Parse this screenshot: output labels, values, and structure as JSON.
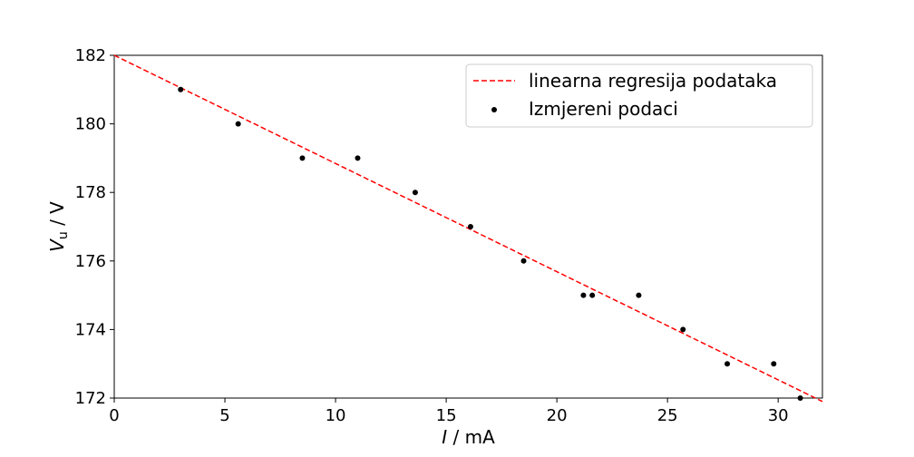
{
  "chart_data": {
    "type": "scatter",
    "xlabel_italic": "I",
    "xlabel_rest": " / mA",
    "ylabel_main": "V",
    "ylabel_sub": "u",
    "ylabel_rest": " / V",
    "xlim": [
      0,
      32
    ],
    "ylim": [
      172,
      182
    ],
    "x_ticks": [
      0,
      5,
      10,
      15,
      20,
      25,
      30
    ],
    "y_ticks": [
      172,
      174,
      176,
      178,
      180,
      182
    ],
    "legend_position": "upper right",
    "series": [
      {
        "name": "linearna regresija podataka",
        "kind": "line",
        "style": "dashed",
        "color": "#ff0000",
        "x": [
          0,
          32
        ],
        "y": [
          182.0,
          171.9
        ]
      },
      {
        "name": "Izmjereni podaci",
        "kind": "scatter",
        "color": "#000000",
        "x": [
          3.0,
          5.6,
          8.5,
          11.0,
          13.6,
          16.1,
          18.5,
          21.2,
          21.6,
          23.7,
          25.7,
          27.7,
          29.8,
          31.0
        ],
        "y": [
          181,
          180,
          179,
          179,
          178,
          177,
          176,
          175,
          175,
          175,
          174,
          173,
          173,
          172
        ]
      }
    ]
  }
}
